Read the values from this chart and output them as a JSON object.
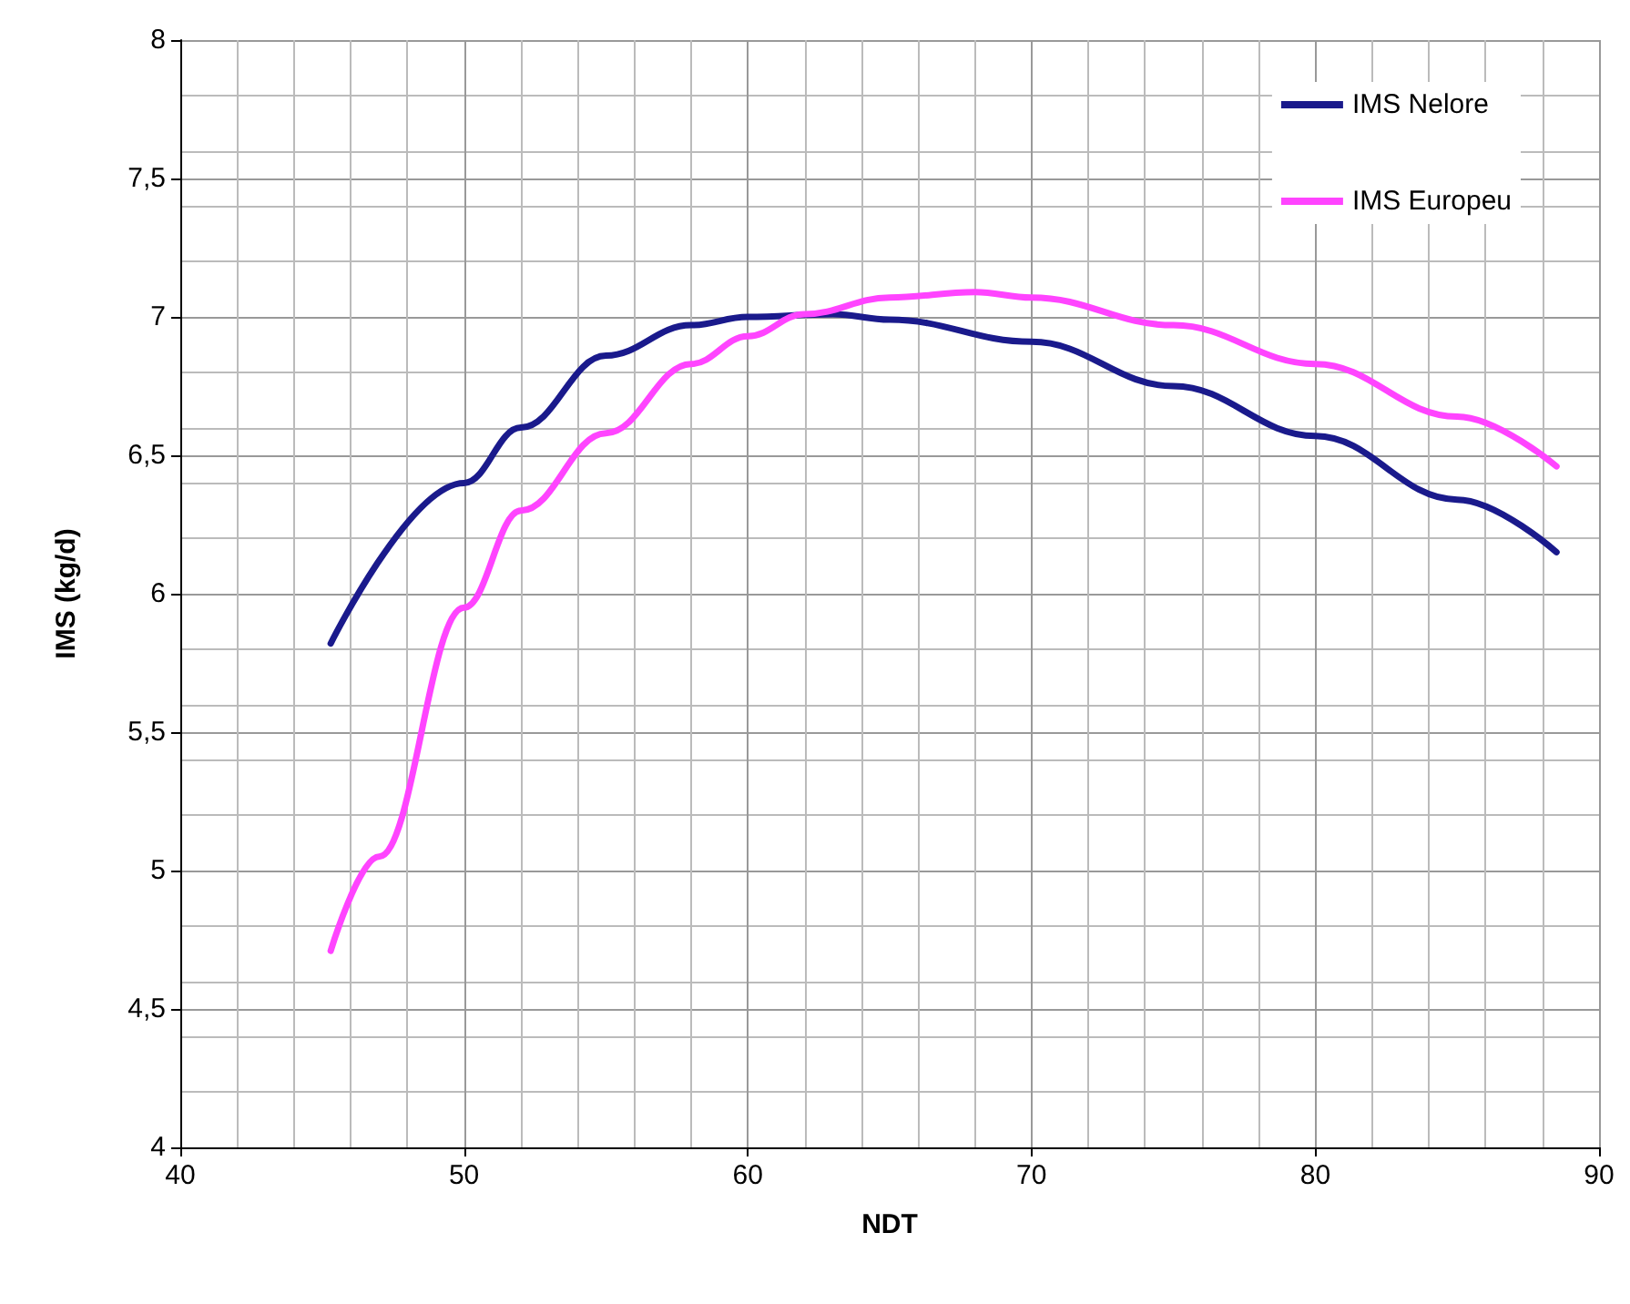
{
  "chart_data": {
    "type": "line",
    "xlabel": "NDT",
    "ylabel": "IMS (kg/d)",
    "xlim": [
      40,
      90
    ],
    "xticks": [
      40,
      50,
      60,
      70,
      80,
      90
    ],
    "ylim": [
      4,
      8
    ],
    "yticks": [
      {
        "value": 4,
        "label": "4"
      },
      {
        "value": 4.5,
        "label": "4,5"
      },
      {
        "value": 5,
        "label": "5"
      },
      {
        "value": 5.5,
        "label": "5,5"
      },
      {
        "value": 6,
        "label": "6"
      },
      {
        "value": 6.5,
        "label": "6,5"
      },
      {
        "value": 7,
        "label": "7"
      },
      {
        "value": 7.5,
        "label": "7,5"
      },
      {
        "value": 8,
        "label": "8"
      }
    ],
    "grid": true,
    "legend": "top right",
    "marker": "none",
    "line_style": "solid",
    "series": [
      {
        "name": "IMS Nelore",
        "color": "#1a1a8c",
        "x": [
          45.3,
          50,
          52,
          55,
          58,
          60,
          63,
          65,
          70,
          75,
          80,
          85,
          88.5
        ],
        "values": [
          5.82,
          6.4,
          6.6,
          6.86,
          6.97,
          7.0,
          7.01,
          6.99,
          6.91,
          6.75,
          6.57,
          6.34,
          6.15
        ]
      },
      {
        "name": "IMS Europeu",
        "color": "#ff44ff",
        "x": [
          45.3,
          47,
          50,
          52,
          55,
          58,
          60,
          62,
          65,
          68,
          70,
          75,
          80,
          85,
          88.5
        ],
        "values": [
          4.71,
          5.05,
          5.95,
          6.3,
          6.58,
          6.83,
          6.93,
          7.01,
          7.07,
          7.09,
          7.07,
          6.97,
          6.83,
          6.64,
          6.46
        ]
      }
    ]
  }
}
